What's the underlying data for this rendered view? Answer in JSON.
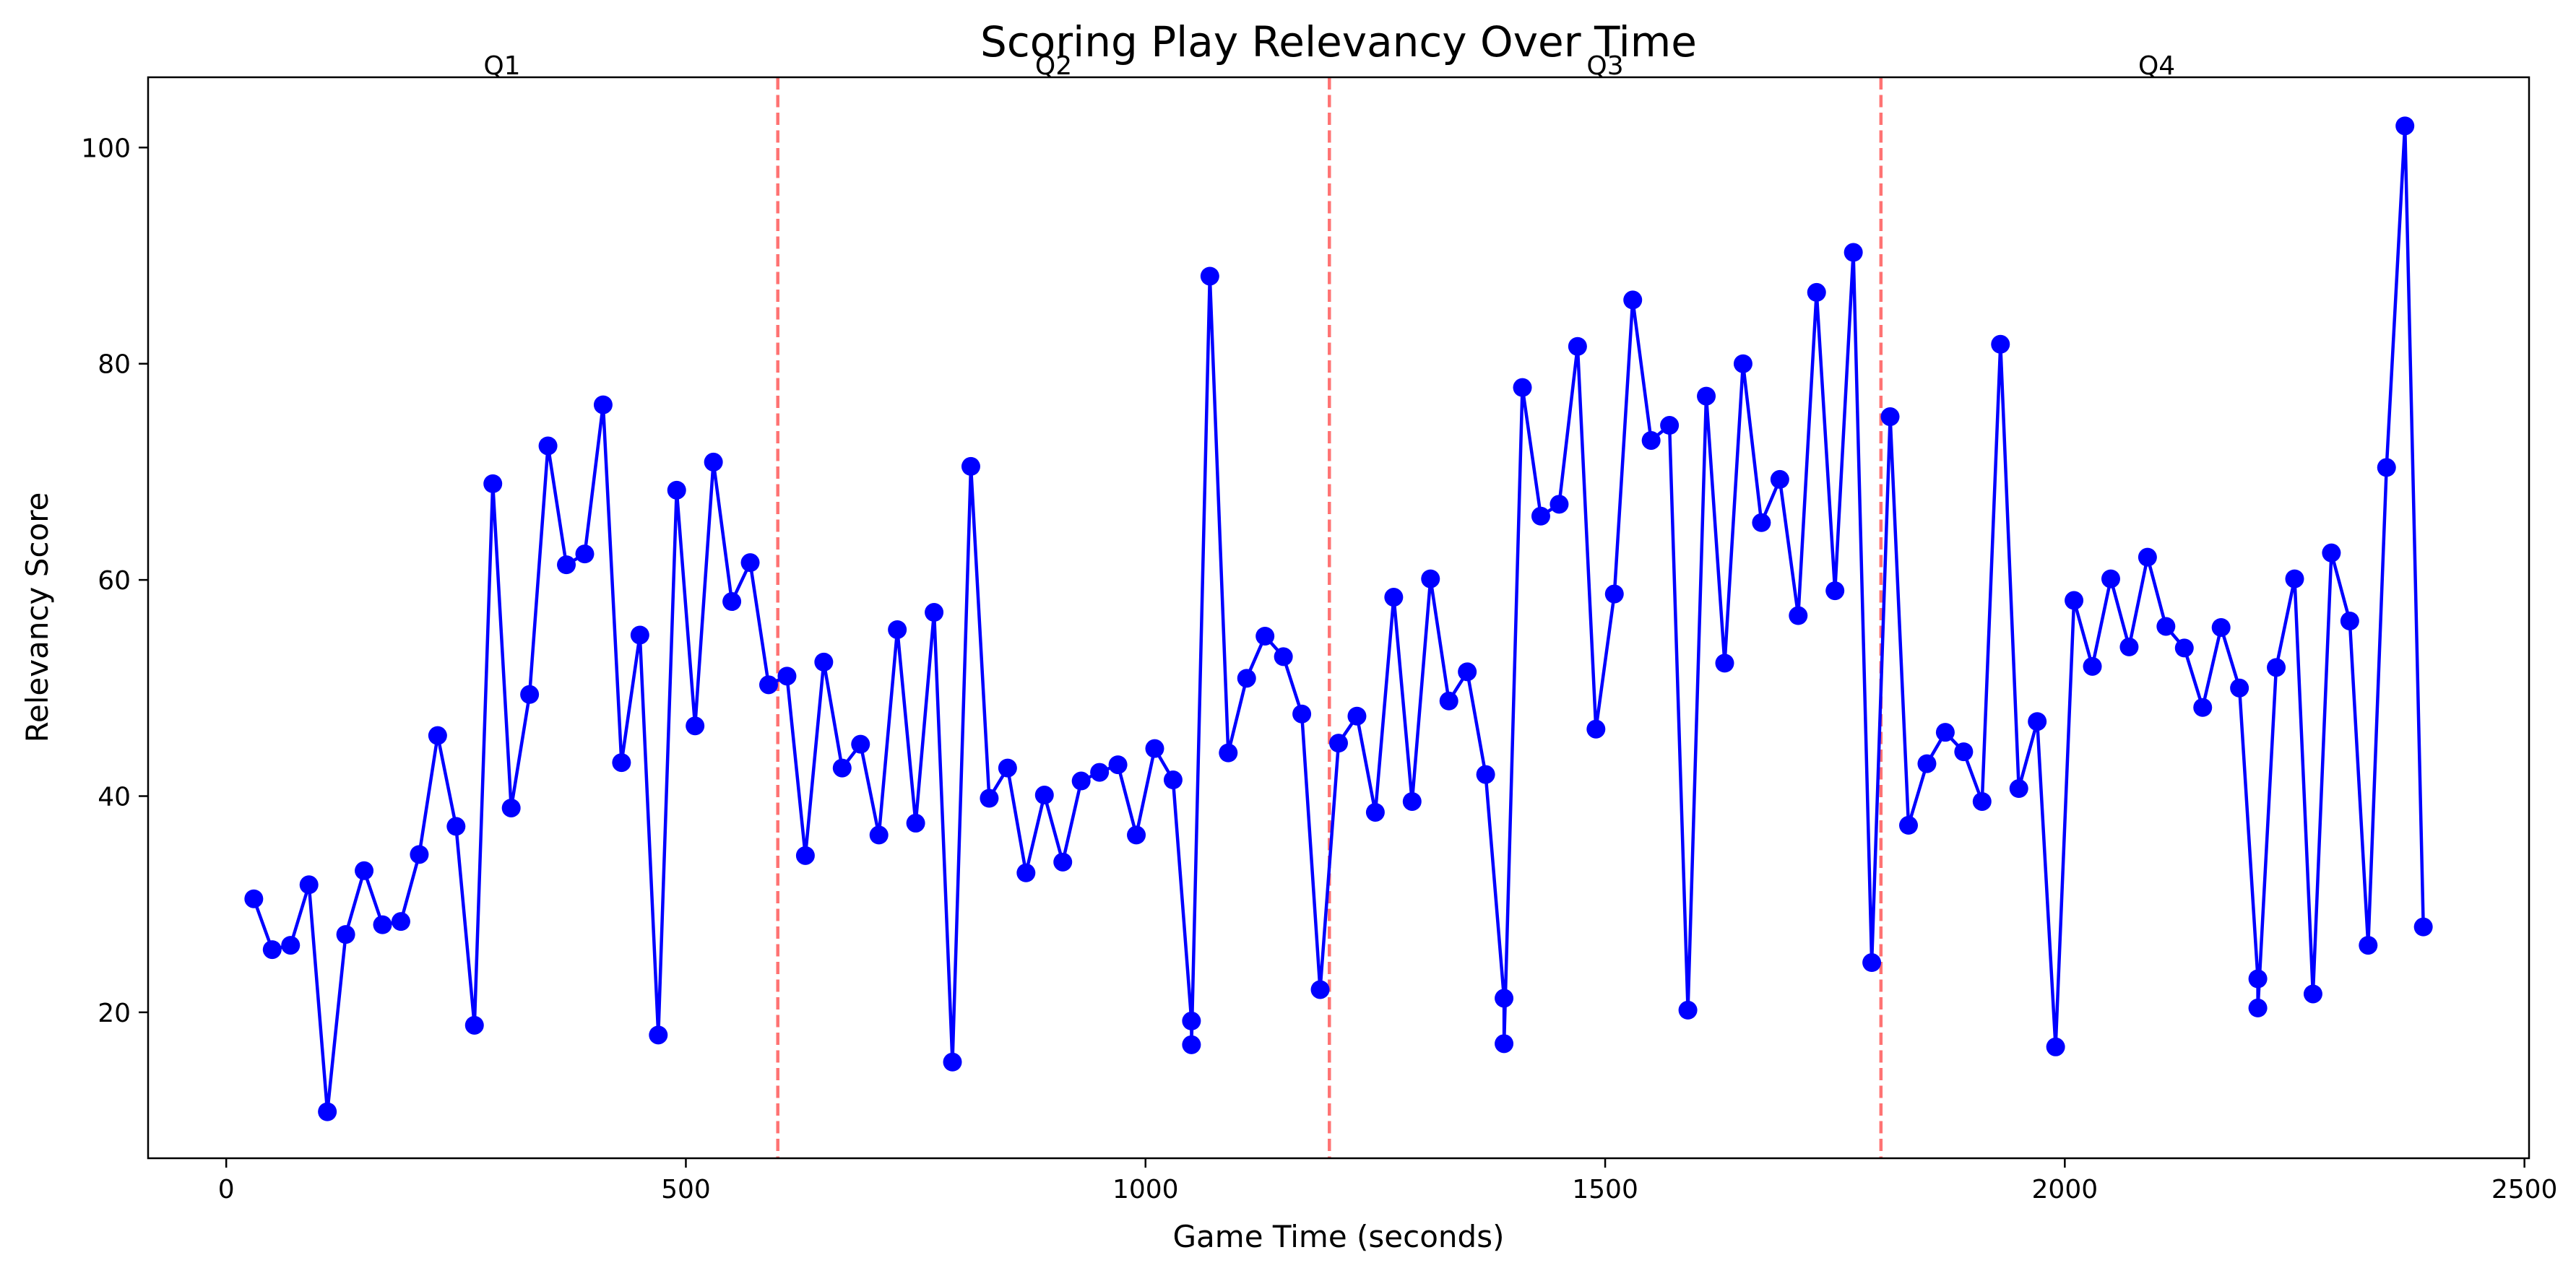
{
  "chart_data": {
    "type": "line",
    "title": "Scoring Play Relevancy Over Time",
    "xlabel": "Game Time (seconds)",
    "ylabel": "Relevancy Score",
    "xlim": [
      -85,
      2505
    ],
    "ylim": [
      6.5,
      106.5
    ],
    "xticks": [
      0,
      500,
      1000,
      1500,
      2000,
      2500
    ],
    "yticks": [
      20,
      40,
      60,
      80,
      100
    ],
    "grid": false,
    "legend": "none",
    "series": [
      {
        "color": "#0000ff",
        "marker": "circle",
        "x": [
          30,
          50,
          70,
          90,
          110,
          130,
          150,
          170,
          190,
          210,
          230,
          250,
          270,
          290,
          310,
          330,
          350,
          370,
          390,
          410,
          430,
          450,
          470,
          490,
          510,
          530,
          550,
          570,
          590,
          610,
          630,
          650,
          670,
          690,
          710,
          730,
          750,
          770,
          790,
          810,
          830,
          850,
          870,
          890,
          910,
          930,
          950,
          970,
          990,
          1010,
          1030,
          1050,
          1050,
          1070,
          1090,
          1110,
          1130,
          1150,
          1170,
          1190,
          1210,
          1230,
          1250,
          1270,
          1290,
          1310,
          1330,
          1350,
          1370,
          1390,
          1390,
          1410,
          1430,
          1450,
          1470,
          1490,
          1510,
          1530,
          1550,
          1570,
          1590,
          1610,
          1630,
          1650,
          1670,
          1690,
          1710,
          1730,
          1750,
          1770,
          1790,
          1810,
          1830,
          1850,
          1870,
          1890,
          1910,
          1930,
          1950,
          1970,
          1990,
          2010,
          2030,
          2050,
          2070,
          2090,
          2110,
          2130,
          2150,
          2170,
          2190,
          2210,
          2210,
          2230,
          2250,
          2270,
          2290,
          2310,
          2330,
          2350,
          2370,
          2390
        ],
        "y": [
          30.5,
          25.8,
          26.2,
          31.8,
          10.8,
          27.2,
          33.1,
          28.1,
          28.4,
          34.6,
          45.6,
          37.2,
          18.8,
          68.9,
          38.9,
          49.4,
          72.4,
          61.4,
          62.4,
          76.2,
          43.1,
          54.9,
          17.9,
          68.3,
          46.5,
          70.9,
          58.0,
          61.6,
          50.3,
          51.1,
          34.5,
          52.4,
          42.6,
          44.8,
          36.4,
          55.4,
          37.5,
          57.0,
          15.4,
          70.5,
          39.8,
          42.6,
          32.9,
          40.1,
          33.9,
          41.4,
          42.2,
          42.9,
          36.4,
          44.4,
          41.5,
          19.2,
          17.0,
          88.1,
          44.0,
          50.9,
          54.8,
          52.9,
          47.6,
          22.1,
          44.9,
          47.4,
          38.5,
          58.4,
          39.5,
          60.1,
          48.8,
          51.5,
          42.0,
          21.3,
          17.1,
          77.8,
          65.9,
          67.0,
          81.6,
          46.2,
          58.7,
          85.9,
          72.9,
          74.3,
          20.2,
          77.0,
          52.3,
          80.0,
          65.3,
          69.3,
          56.7,
          86.6,
          59.0,
          90.3,
          24.6,
          75.1,
          37.3,
          43.0,
          45.9,
          44.1,
          39.5,
          81.8,
          40.7,
          46.9,
          16.8,
          58.1,
          52.0,
          60.1,
          53.8,
          62.1,
          55.7,
          53.7,
          48.2,
          55.6,
          50.0,
          23.1,
          20.4,
          51.9,
          60.1,
          21.7,
          62.5,
          56.2,
          26.2,
          70.4,
          102.0,
          27.9
        ]
      }
    ],
    "quarter_lines": {
      "x": [
        600,
        1200,
        1800
      ],
      "color": "#ff0000",
      "style": "dashed"
    },
    "quarter_labels": [
      {
        "text": "Q1",
        "x": 300
      },
      {
        "text": "Q2",
        "x": 900
      },
      {
        "text": "Q3",
        "x": 1500
      },
      {
        "text": "Q4",
        "x": 2100
      }
    ]
  }
}
